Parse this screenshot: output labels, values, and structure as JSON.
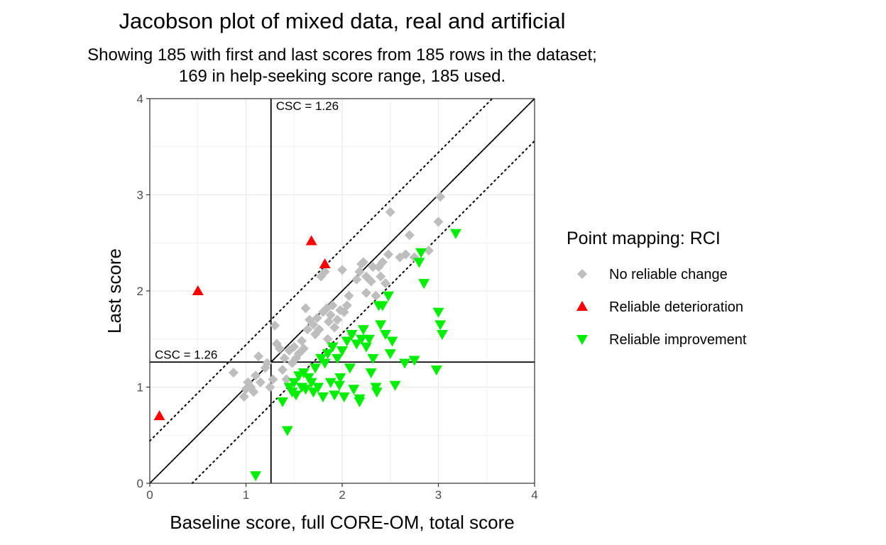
{
  "chart_data": {
    "type": "scatter",
    "title": "Jacobson plot of mixed data, real and artificial",
    "subtitle_lines": [
      "Showing 185 with first and last scores from 185 rows in the dataset;",
      "169 in help-seeking score range, 185 used."
    ],
    "xlabel": "Baseline score, full CORE-OM, total score",
    "ylabel": "Last score",
    "xlim": [
      0,
      4
    ],
    "ylim": [
      0,
      4
    ],
    "x_ticks": [
      0,
      1,
      2,
      3,
      4
    ],
    "y_ticks": [
      0,
      1,
      2,
      3,
      4
    ],
    "grid": true,
    "csc_value": 1.26,
    "csc_label_x": "CSC = 1.26",
    "csc_label_y": "CSC = 1.26",
    "rci_band": 0.44,
    "legend": {
      "title": "Point mapping: RCI",
      "position": "right"
    },
    "series": [
      {
        "name": "No reliable change",
        "marker": "diamond",
        "color": "#bebebe",
        "points": [
          [
            0.87,
            1.15
          ],
          [
            0.98,
            0.9
          ],
          [
            1.0,
            0.98
          ],
          [
            1.02,
            1.05
          ],
          [
            1.05,
            1.0
          ],
          [
            1.08,
            0.95
          ],
          [
            1.1,
            1.12
          ],
          [
            1.13,
            1.32
          ],
          [
            1.15,
            1.05
          ],
          [
            1.2,
            1.2
          ],
          [
            1.22,
            1.25
          ],
          [
            1.25,
            1.0
          ],
          [
            1.28,
            1.08
          ],
          [
            1.3,
            1.64
          ],
          [
            1.32,
            1.45
          ],
          [
            1.35,
            1.4
          ],
          [
            1.38,
            1.18
          ],
          [
            1.4,
            1.3
          ],
          [
            1.42,
            1.08
          ],
          [
            1.45,
            1.38
          ],
          [
            1.48,
            1.25
          ],
          [
            1.5,
            1.42
          ],
          [
            1.52,
            1.3
          ],
          [
            1.55,
            1.35
          ],
          [
            1.58,
            1.48
          ],
          [
            1.6,
            1.4
          ],
          [
            1.62,
            1.82
          ],
          [
            1.64,
            1.6
          ],
          [
            1.66,
            1.7
          ],
          [
            1.7,
            1.65
          ],
          [
            1.72,
            1.55
          ],
          [
            1.74,
            1.72
          ],
          [
            1.76,
            1.6
          ],
          [
            1.78,
            2.15
          ],
          [
            1.8,
            1.78
          ],
          [
            1.82,
            2.2
          ],
          [
            1.84,
            1.82
          ],
          [
            1.85,
            1.5
          ],
          [
            1.86,
            1.68
          ],
          [
            1.88,
            1.75
          ],
          [
            1.9,
            1.85
          ],
          [
            1.92,
            1.62
          ],
          [
            1.95,
            1.7
          ],
          [
            1.98,
            1.8
          ],
          [
            2.0,
            2.22
          ],
          [
            2.02,
            1.78
          ],
          [
            2.05,
            1.85
          ],
          [
            2.07,
            1.95
          ],
          [
            2.1,
            1.55
          ],
          [
            2.15,
            2.12
          ],
          [
            2.18,
            2.2
          ],
          [
            2.2,
            2.28
          ],
          [
            2.22,
            2.3
          ],
          [
            2.25,
            2.15
          ],
          [
            2.25,
            1.98
          ],
          [
            2.3,
            2.1
          ],
          [
            2.32,
            2.25
          ],
          [
            2.35,
            1.95
          ],
          [
            2.38,
            2.25
          ],
          [
            2.4,
            2.15
          ],
          [
            2.42,
            2.3
          ],
          [
            2.45,
            2.08
          ],
          [
            2.48,
            2.38
          ],
          [
            2.5,
            2.82
          ],
          [
            2.6,
            2.35
          ],
          [
            2.66,
            2.38
          ],
          [
            2.7,
            2.58
          ],
          [
            2.75,
            2.35
          ],
          [
            2.9,
            2.42
          ],
          [
            3.0,
            2.72
          ],
          [
            3.02,
            2.98
          ]
        ]
      },
      {
        "name": "Reliable deterioration",
        "marker": "triangle-up",
        "color": "#ff0000",
        "points": [
          [
            0.1,
            0.7
          ],
          [
            0.5,
            2.0
          ],
          [
            1.68,
            2.52
          ],
          [
            1.82,
            2.28
          ]
        ]
      },
      {
        "name": "Reliable improvement",
        "marker": "triangle-down",
        "color": "#00ee00",
        "points": [
          [
            1.1,
            0.08
          ],
          [
            1.38,
            0.85
          ],
          [
            1.43,
            0.55
          ],
          [
            1.45,
            1.0
          ],
          [
            1.48,
            0.95
          ],
          [
            1.5,
            1.05
          ],
          [
            1.52,
            0.92
          ],
          [
            1.55,
            1.12
          ],
          [
            1.58,
            1.0
          ],
          [
            1.6,
            1.15
          ],
          [
            1.62,
            0.98
          ],
          [
            1.65,
            1.1
          ],
          [
            1.68,
            1.05
          ],
          [
            1.7,
            0.95
          ],
          [
            1.72,
            1.2
          ],
          [
            1.75,
            1.0
          ],
          [
            1.78,
            1.3
          ],
          [
            1.8,
            0.9
          ],
          [
            1.82,
            1.25
          ],
          [
            1.85,
            1.35
          ],
          [
            1.88,
            1.05
          ],
          [
            1.9,
            1.42
          ],
          [
            1.92,
            0.92
          ],
          [
            1.95,
            1.3
          ],
          [
            1.98,
            1.1
          ],
          [
            2.0,
            1.38
          ],
          [
            2.02,
            0.9
          ],
          [
            2.05,
            1.48
          ],
          [
            2.08,
            1.2
          ],
          [
            2.1,
            1.55
          ],
          [
            2.12,
            0.98
          ],
          [
            2.15,
            1.45
          ],
          [
            2.18,
            0.85
          ],
          [
            2.2,
            1.5
          ],
          [
            2.22,
            1.6
          ],
          [
            2.25,
            1.42
          ],
          [
            2.28,
            1.5
          ],
          [
            2.3,
            1.15
          ],
          [
            2.32,
            1.3
          ],
          [
            2.35,
            1.0
          ],
          [
            2.38,
            1.85
          ],
          [
            2.4,
            1.65
          ],
          [
            2.42,
            1.85
          ],
          [
            2.45,
            1.55
          ],
          [
            2.48,
            1.95
          ],
          [
            2.5,
            1.35
          ],
          [
            2.52,
            1.48
          ],
          [
            2.55,
            1.02
          ],
          [
            2.65,
            1.25
          ],
          [
            2.75,
            1.28
          ],
          [
            2.8,
            2.3
          ],
          [
            2.82,
            2.4
          ],
          [
            2.85,
            2.08
          ],
          [
            2.98,
            1.18
          ],
          [
            3.0,
            1.78
          ],
          [
            3.02,
            1.65
          ],
          [
            3.04,
            1.55
          ],
          [
            3.18,
            2.6
          ],
          [
            2.18,
            0.88
          ],
          [
            2.36,
            0.95
          ],
          [
            1.97,
            1.02
          ]
        ]
      }
    ]
  }
}
